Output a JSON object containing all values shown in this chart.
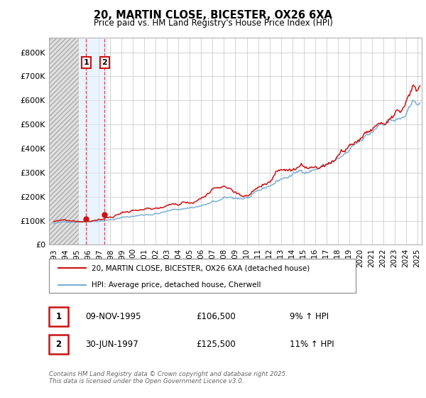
{
  "title": "20, MARTIN CLOSE, BICESTER, OX26 6XA",
  "subtitle": "Price paid vs. HM Land Registry's House Price Index (HPI)",
  "ylim": [
    0,
    860000
  ],
  "yticks": [
    0,
    100000,
    200000,
    300000,
    400000,
    500000,
    600000,
    700000,
    800000
  ],
  "ytick_labels": [
    "£0",
    "£100K",
    "£200K",
    "£300K",
    "£400K",
    "£500K",
    "£600K",
    "£700K",
    "£800K"
  ],
  "transaction1": {
    "date": "09-NOV-1995",
    "x": 1995.86,
    "price": 106500,
    "label": "1"
  },
  "transaction2": {
    "date": "30-JUN-1997",
    "x": 1997.5,
    "price": 125500,
    "label": "2"
  },
  "hpi_color": "#7bafd4",
  "price_color": "#cc1111",
  "legend_entry1": "20, MARTIN CLOSE, BICESTER, OX26 6XA (detached house)",
  "legend_entry2": "HPI: Average price, detached house, Cherwell",
  "table_row1": [
    "1",
    "09-NOV-1995",
    "£106,500",
    "9% ↑ HPI"
  ],
  "table_row2": [
    "2",
    "30-JUN-1997",
    "£125,500",
    "11% ↑ HPI"
  ],
  "footer": "Contains HM Land Registry data © Crown copyright and database right 2025.\nThis data is licensed under the Open Government Licence v3.0.",
  "xlim_start": 1992.6,
  "xlim_end": 2025.4,
  "hatch_start": 1992.6,
  "hatch_end": 1995.2,
  "blue_span_start": 1995.2,
  "blue_span_end": 1997.8
}
